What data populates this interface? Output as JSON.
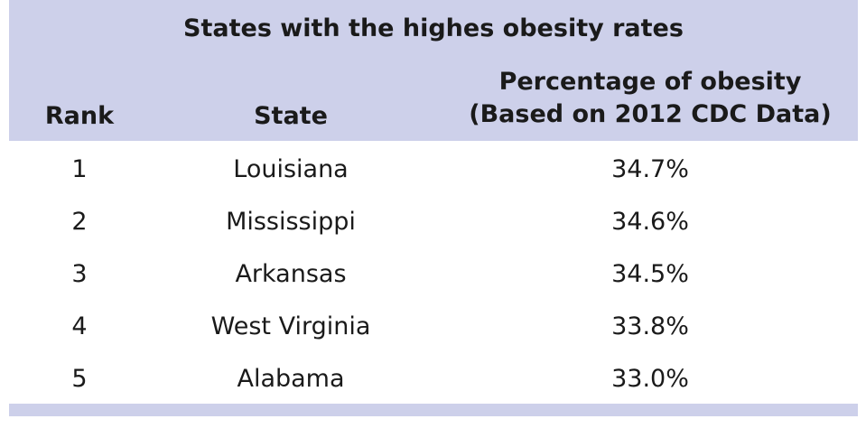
{
  "table": {
    "title": "States with the highes obesity rates",
    "headers": {
      "rank": "Rank",
      "state": "State",
      "percentage_line1": "Percentage of obesity",
      "percentage_line2": "(Based on 2012 CDC Data)"
    },
    "rows": [
      {
        "rank": "1",
        "state": "Louisiana",
        "percentage": "34.7%"
      },
      {
        "rank": "2",
        "state": "Mississippi",
        "percentage": "34.6%"
      },
      {
        "rank": "3",
        "state": "Arkansas",
        "percentage": "34.5%"
      },
      {
        "rank": "4",
        "state": "West Virginia",
        "percentage": "33.8%"
      },
      {
        "rank": "5",
        "state": "Alabama",
        "percentage": "33.0%"
      }
    ]
  },
  "colors": {
    "header_band": "#cdd0ea",
    "text": "#1a1a1a"
  }
}
